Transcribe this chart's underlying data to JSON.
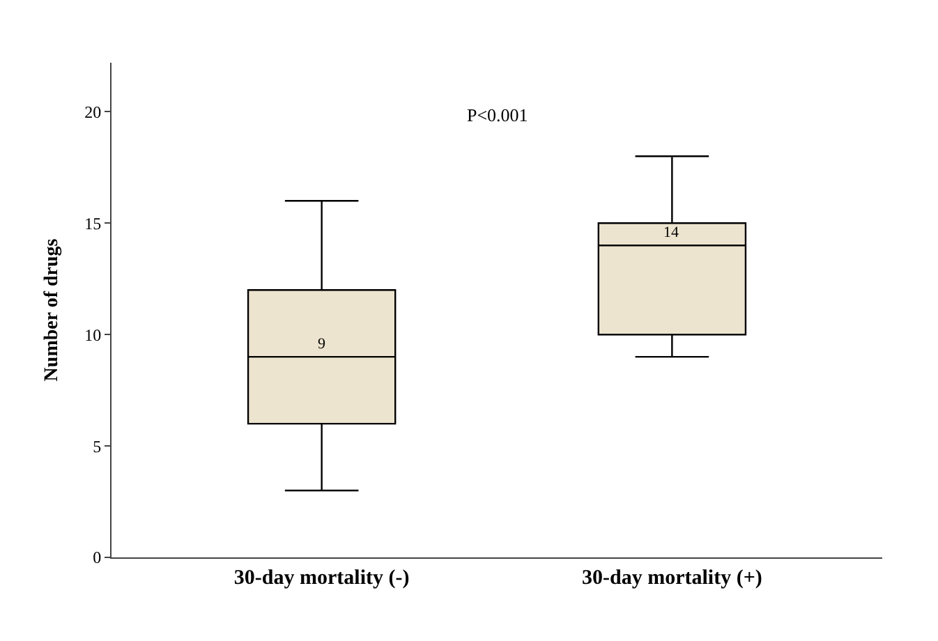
{
  "chart_data": {
    "type": "box",
    "ylabel": "Number of drugs",
    "categories": [
      "30-day mortality (-)",
      "30-day mortality (+)"
    ],
    "boxes": [
      {
        "low": 3,
        "q1": 6,
        "median": 9,
        "q3": 12,
        "high": 16
      },
      {
        "low": 9,
        "q1": 10,
        "median": 14,
        "q3": 15,
        "high": 18
      }
    ],
    "color": "#ede4cf",
    "ylim": [
      0,
      22.2
    ],
    "yticks": [
      0,
      5,
      10,
      15,
      20
    ],
    "annotations": [
      "P<0.001",
      {
        "text": "9",
        "x": "30-day mortality (-)",
        "y": 9
      },
      {
        "text": "14",
        "x": "30-day mortality (+)",
        "y": 14
      }
    ]
  }
}
